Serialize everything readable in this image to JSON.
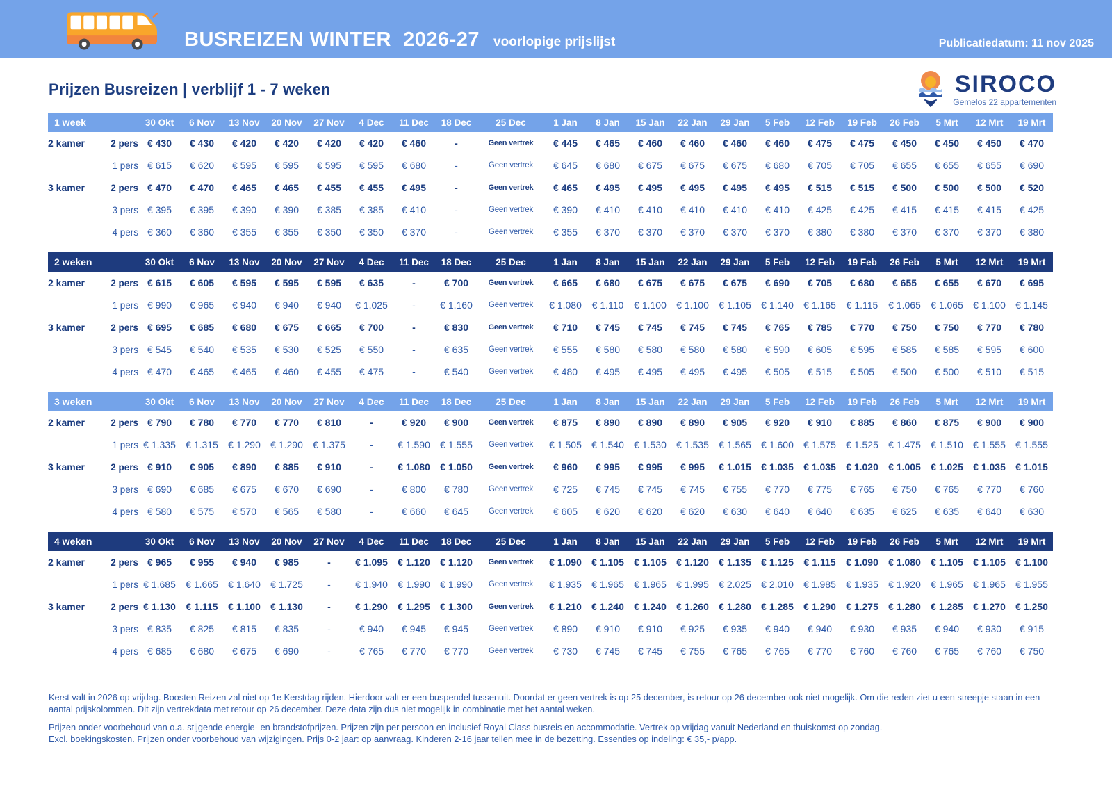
{
  "banner": {
    "title": "BUSREIZEN WINTER  2026-27",
    "subtitle": "voorlopige prijslijst",
    "publication": "Publicatiedatum: 11 nov 2025"
  },
  "heading": "Prijzen Busreizen | verblijf 1 - 7 weken",
  "logo": {
    "name": "SIROCO",
    "tagline": "Gemelos 22 appartementen"
  },
  "colors": {
    "banner_blue": "#74A3E9",
    "header_dark_navy": "#1E3B7E",
    "bold_text_navy": "#1C3D80",
    "regular_text_blue": "#2E59A8",
    "bus_body_yellow": "#F9A62B",
    "bus_band_orange": "#F2853D",
    "logo_orange": "#F08A4B",
    "logo_sun_yellow": "#F7B32B"
  },
  "columns": [
    "30 Okt",
    "6 Nov",
    "13 Nov",
    "20 Nov",
    "27 Nov",
    "4 Dec",
    "11 Dec",
    "18 Dec",
    "25 Dec",
    "1 Jan",
    "8 Jan",
    "15 Jan",
    "22 Jan",
    "29 Jan",
    "5 Feb",
    "12 Feb",
    "19 Feb",
    "26 Feb",
    "5 Mrt",
    "12 Mrt",
    "19 Mrt"
  ],
  "tables": [
    {
      "label": "1 week",
      "style": "light",
      "rows": [
        {
          "room": "2 kamer",
          "occ": "2 pers",
          "bold": true,
          "values": [
            "€ 430",
            "€ 430",
            "€ 420",
            "€ 420",
            "€ 420",
            "€ 420",
            "€ 460",
            "-",
            "Geen vertrek",
            "€ 445",
            "€ 465",
            "€ 460",
            "€ 460",
            "€ 460",
            "€ 460",
            "€ 475",
            "€ 475",
            "€ 450",
            "€ 450",
            "€ 450",
            "€ 470"
          ]
        },
        {
          "room": "",
          "occ": "1 pers",
          "bold": false,
          "values": [
            "€ 615",
            "€ 620",
            "€ 595",
            "€ 595",
            "€ 595",
            "€ 595",
            "€ 680",
            "-",
            "Geen vertrek",
            "€ 645",
            "€ 680",
            "€ 675",
            "€ 675",
            "€ 675",
            "€ 680",
            "€ 705",
            "€ 705",
            "€ 655",
            "€ 655",
            "€ 655",
            "€ 690"
          ]
        },
        {
          "room": "3 kamer",
          "occ": "2 pers",
          "bold": true,
          "values": [
            "€ 470",
            "€ 470",
            "€ 465",
            "€ 465",
            "€ 455",
            "€ 455",
            "€ 495",
            "-",
            "Geen vertrek",
            "€ 465",
            "€ 495",
            "€ 495",
            "€ 495",
            "€ 495",
            "€ 495",
            "€ 515",
            "€ 515",
            "€ 500",
            "€ 500",
            "€ 500",
            "€ 520"
          ]
        },
        {
          "room": "",
          "occ": "3 pers",
          "bold": false,
          "values": [
            "€ 395",
            "€ 395",
            "€ 390",
            "€ 390",
            "€ 385",
            "€ 385",
            "€ 410",
            "-",
            "Geen vertrek",
            "€ 390",
            "€ 410",
            "€ 410",
            "€ 410",
            "€ 410",
            "€ 410",
            "€ 425",
            "€ 425",
            "€ 415",
            "€ 415",
            "€ 415",
            "€ 425"
          ]
        },
        {
          "room": "",
          "occ": "4 pers",
          "bold": false,
          "values": [
            "€ 360",
            "€ 360",
            "€ 355",
            "€ 355",
            "€ 350",
            "€ 350",
            "€ 370",
            "-",
            "Geen vertrek",
            "€ 355",
            "€ 370",
            "€ 370",
            "€ 370",
            "€ 370",
            "€ 370",
            "€ 380",
            "€ 380",
            "€ 370",
            "€ 370",
            "€ 370",
            "€ 380"
          ]
        }
      ]
    },
    {
      "label": "2 weken",
      "style": "dark",
      "rows": [
        {
          "room": "2 kamer",
          "occ": "2 pers",
          "bold": true,
          "values": [
            "€ 615",
            "€ 605",
            "€ 595",
            "€ 595",
            "€ 595",
            "€ 635",
            "-",
            "€ 700",
            "Geen vertrek",
            "€ 665",
            "€ 680",
            "€ 675",
            "€ 675",
            "€ 675",
            "€ 690",
            "€ 705",
            "€ 680",
            "€ 655",
            "€ 655",
            "€ 670",
            "€ 695"
          ]
        },
        {
          "room": "",
          "occ": "1 pers",
          "bold": false,
          "values": [
            "€ 990",
            "€ 965",
            "€ 940",
            "€ 940",
            "€ 940",
            "€ 1.025",
            "-",
            "€ 1.160",
            "Geen vertrek",
            "€ 1.080",
            "€ 1.110",
            "€ 1.100",
            "€ 1.100",
            "€ 1.105",
            "€ 1.140",
            "€ 1.165",
            "€ 1.115",
            "€ 1.065",
            "€ 1.065",
            "€ 1.100",
            "€ 1.145"
          ]
        },
        {
          "room": "3 kamer",
          "occ": "2 pers",
          "bold": true,
          "values": [
            "€ 695",
            "€ 685",
            "€ 680",
            "€ 675",
            "€ 665",
            "€ 700",
            "-",
            "€ 830",
            "Geen vertrek",
            "€ 710",
            "€ 745",
            "€ 745",
            "€ 745",
            "€ 745",
            "€ 765",
            "€ 785",
            "€ 770",
            "€ 750",
            "€ 750",
            "€ 770",
            "€ 780"
          ]
        },
        {
          "room": "",
          "occ": "3 pers",
          "bold": false,
          "values": [
            "€ 545",
            "€ 540",
            "€ 535",
            "€ 530",
            "€ 525",
            "€ 550",
            "-",
            "€ 635",
            "Geen vertrek",
            "€ 555",
            "€ 580",
            "€ 580",
            "€ 580",
            "€ 580",
            "€ 590",
            "€ 605",
            "€ 595",
            "€ 585",
            "€ 585",
            "€ 595",
            "€ 600"
          ]
        },
        {
          "room": "",
          "occ": "4 pers",
          "bold": false,
          "values": [
            "€ 470",
            "€ 465",
            "€ 465",
            "€ 460",
            "€ 455",
            "€ 475",
            "-",
            "€ 540",
            "Geen vertrek",
            "€ 480",
            "€ 495",
            "€ 495",
            "€ 495",
            "€ 495",
            "€ 505",
            "€ 515",
            "€ 505",
            "€ 500",
            "€ 500",
            "€ 510",
            "€ 515"
          ]
        }
      ]
    },
    {
      "label": "3 weken",
      "style": "light",
      "rows": [
        {
          "room": "2 kamer",
          "occ": "2 pers",
          "bold": true,
          "values": [
            "€ 790",
            "€ 780",
            "€ 770",
            "€ 770",
            "€ 810",
            "-",
            "€ 920",
            "€ 900",
            "Geen vertrek",
            "€ 875",
            "€ 890",
            "€ 890",
            "€ 890",
            "€ 905",
            "€ 920",
            "€ 910",
            "€ 885",
            "€ 860",
            "€ 875",
            "€ 900",
            "€ 900"
          ]
        },
        {
          "room": "",
          "occ": "1 pers",
          "bold": false,
          "values": [
            "€ 1.335",
            "€ 1.315",
            "€ 1.290",
            "€ 1.290",
            "€ 1.375",
            "-",
            "€ 1.590",
            "€ 1.555",
            "Geen vertrek",
            "€ 1.505",
            "€ 1.540",
            "€ 1.530",
            "€ 1.535",
            "€ 1.565",
            "€ 1.600",
            "€ 1.575",
            "€ 1.525",
            "€ 1.475",
            "€ 1.510",
            "€ 1.555",
            "€ 1.555"
          ]
        },
        {
          "room": "3 kamer",
          "occ": "2 pers",
          "bold": true,
          "values": [
            "€ 910",
            "€ 905",
            "€ 890",
            "€ 885",
            "€ 910",
            "-",
            "€ 1.080",
            "€ 1.050",
            "Geen vertrek",
            "€ 960",
            "€ 995",
            "€ 995",
            "€ 995",
            "€ 1.015",
            "€ 1.035",
            "€ 1.035",
            "€ 1.020",
            "€ 1.005",
            "€ 1.025",
            "€ 1.035",
            "€ 1.015"
          ]
        },
        {
          "room": "",
          "occ": "3 pers",
          "bold": false,
          "values": [
            "€ 690",
            "€ 685",
            "€ 675",
            "€ 670",
            "€ 690",
            "-",
            "€ 800",
            "€ 780",
            "Geen vertrek",
            "€ 725",
            "€ 745",
            "€ 745",
            "€ 745",
            "€ 755",
            "€ 770",
            "€ 775",
            "€ 765",
            "€ 750",
            "€ 765",
            "€ 770",
            "€ 760"
          ]
        },
        {
          "room": "",
          "occ": "4 pers",
          "bold": false,
          "values": [
            "€ 580",
            "€ 575",
            "€ 570",
            "€ 565",
            "€ 580",
            "-",
            "€ 660",
            "€ 645",
            "Geen vertrek",
            "€ 605",
            "€ 620",
            "€ 620",
            "€ 620",
            "€ 630",
            "€ 640",
            "€ 640",
            "€ 635",
            "€ 625",
            "€ 635",
            "€ 640",
            "€ 630"
          ]
        }
      ]
    },
    {
      "label": "4 weken",
      "style": "dark",
      "rows": [
        {
          "room": "2 kamer",
          "occ": "2 pers",
          "bold": true,
          "values": [
            "€ 965",
            "€ 955",
            "€ 940",
            "€ 985",
            "-",
            "€ 1.095",
            "€ 1.120",
            "€ 1.120",
            "Geen vertrek",
            "€ 1.090",
            "€ 1.105",
            "€ 1.105",
            "€ 1.120",
            "€ 1.135",
            "€ 1.125",
            "€ 1.115",
            "€ 1.090",
            "€ 1.080",
            "€ 1.105",
            "€ 1.105",
            "€ 1.100"
          ]
        },
        {
          "room": "",
          "occ": "1 pers",
          "bold": false,
          "values": [
            "€ 1.685",
            "€ 1.665",
            "€ 1.640",
            "€ 1.725",
            "-",
            "€ 1.940",
            "€ 1.990",
            "€ 1.990",
            "Geen vertrek",
            "€ 1.935",
            "€ 1.965",
            "€ 1.965",
            "€ 1.995",
            "€ 2.025",
            "€ 2.010",
            "€ 1.985",
            "€ 1.935",
            "€ 1.920",
            "€ 1.965",
            "€ 1.965",
            "€ 1.955"
          ]
        },
        {
          "room": "3 kamer",
          "occ": "2 pers",
          "bold": true,
          "values": [
            "€ 1.130",
            "€ 1.115",
            "€ 1.100",
            "€ 1.130",
            "-",
            "€ 1.290",
            "€ 1.295",
            "€ 1.300",
            "Geen vertrek",
            "€ 1.210",
            "€ 1.240",
            "€ 1.240",
            "€ 1.260",
            "€ 1.280",
            "€ 1.285",
            "€ 1.290",
            "€ 1.275",
            "€ 1.280",
            "€ 1.285",
            "€ 1.270",
            "€ 1.250"
          ]
        },
        {
          "room": "",
          "occ": "3 pers",
          "bold": false,
          "values": [
            "€ 835",
            "€ 825",
            "€ 815",
            "€ 835",
            "-",
            "€ 940",
            "€ 945",
            "€ 945",
            "Geen vertrek",
            "€ 890",
            "€ 910",
            "€ 910",
            "€ 925",
            "€ 935",
            "€ 940",
            "€ 940",
            "€ 930",
            "€ 935",
            "€ 940",
            "€ 930",
            "€ 915"
          ]
        },
        {
          "room": "",
          "occ": "4 pers",
          "bold": false,
          "values": [
            "€ 685",
            "€ 680",
            "€ 675",
            "€ 690",
            "-",
            "€ 765",
            "€ 770",
            "€ 770",
            "Geen vertrek",
            "€ 730",
            "€ 745",
            "€ 745",
            "€ 755",
            "€ 765",
            "€ 765",
            "€ 770",
            "€ 760",
            "€ 760",
            "€ 765",
            "€ 760",
            "€ 750"
          ]
        }
      ]
    }
  ],
  "footnotes": [
    "Kerst valt in 2026 op vrijdag. Boosten Reizen zal niet op 1e Kerstdag rijden. Hierdoor valt er een buspendel tussenuit. Doordat er geen vertrek is op 25 december,  is retour op 26 december ook niet mogelijk. Om die reden ziet u een streepje staan in een aantal prijskolommen. Dit zijn vertrekdata met retour op 26 december. Deze data zijn dus niet mogelijk in combinatie met het aantal weken.",
    "Prijzen onder voorbehoud van o.a. stijgende energie- en brandstofprijzen. Prijzen zijn per persoon en inclusief Royal Class busreis en accommodatie. Vertrek op vrijdag vanuit Nederland en thuiskomst op zondag.",
    "Excl. boekingskosten. Prijzen onder voorbehoud van wijzigingen. Prijs 0-2 jaar: op aanvraag.  Kinderen 2-16 jaar tellen mee in de bezetting. Essenties op indeling: € 35,- p/app."
  ]
}
